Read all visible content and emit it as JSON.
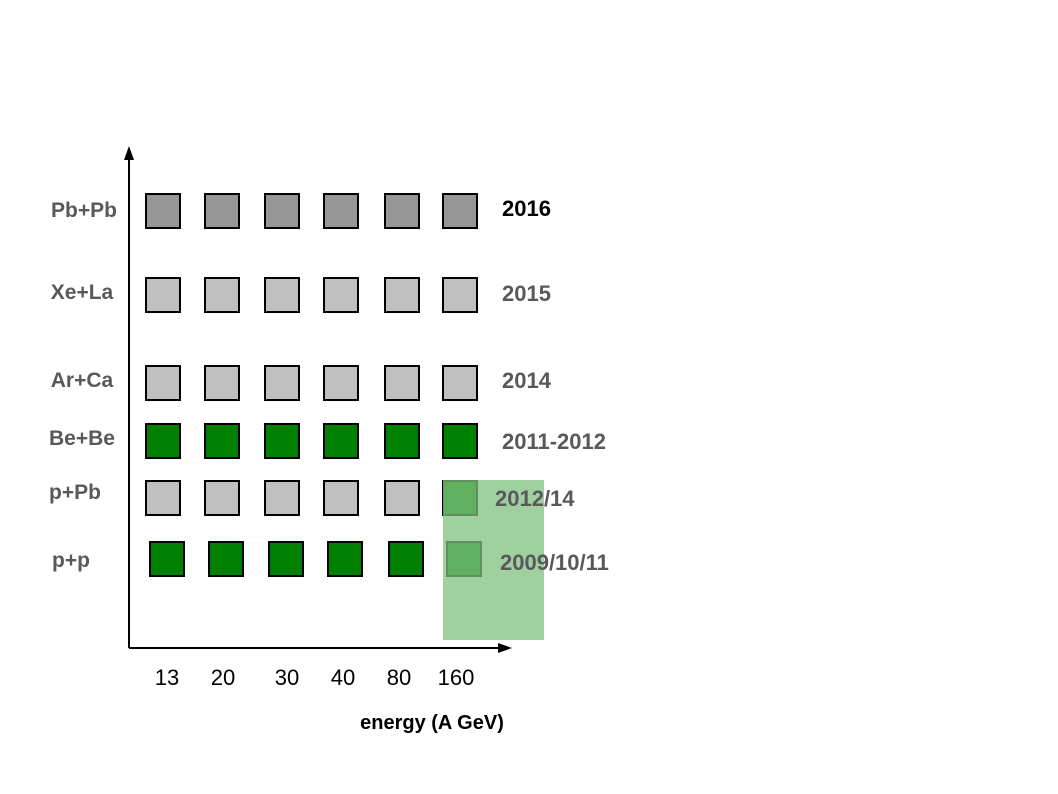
{
  "chart_data": {
    "type": "table",
    "title": "",
    "xlabel": "energy (A GeV)",
    "ylabel": "",
    "x": [
      "13",
      "20",
      "30",
      "40",
      "80",
      "160"
    ],
    "rows": [
      {
        "system": "Pb+Pb",
        "year": "2016",
        "cells": [
          "planned-dark",
          "planned-dark",
          "planned-dark",
          "planned-dark",
          "planned-dark",
          "planned-dark"
        ]
      },
      {
        "system": "Xe+La",
        "year": "2015",
        "cells": [
          "planned",
          "planned",
          "planned",
          "planned",
          "planned",
          "planned"
        ]
      },
      {
        "system": "Ar+Ca",
        "year": "2014",
        "cells": [
          "planned",
          "planned",
          "planned",
          "planned",
          "planned",
          "planned"
        ]
      },
      {
        "system": "Be+Be",
        "year": "2011-2012",
        "cells": [
          "done",
          "done",
          "done",
          "done",
          "done",
          "done"
        ]
      },
      {
        "system": "p+Pb",
        "year": "2012/14",
        "cells": [
          "planned",
          "planned",
          "planned",
          "planned",
          "planned",
          "done"
        ]
      },
      {
        "system": "p+p",
        "year": "2009/10/11",
        "cells": [
          "done",
          "done",
          "done",
          "done",
          "done",
          "done"
        ]
      }
    ],
    "status_colors": {
      "done": "#008000",
      "planned": "#c0c0c0",
      "planned-dark": "#969696",
      "highlight": "#80c080"
    },
    "year_colors": [
      "#000000",
      "#595959",
      "#595959",
      "#595959",
      "#595959",
      "#595959"
    ]
  }
}
